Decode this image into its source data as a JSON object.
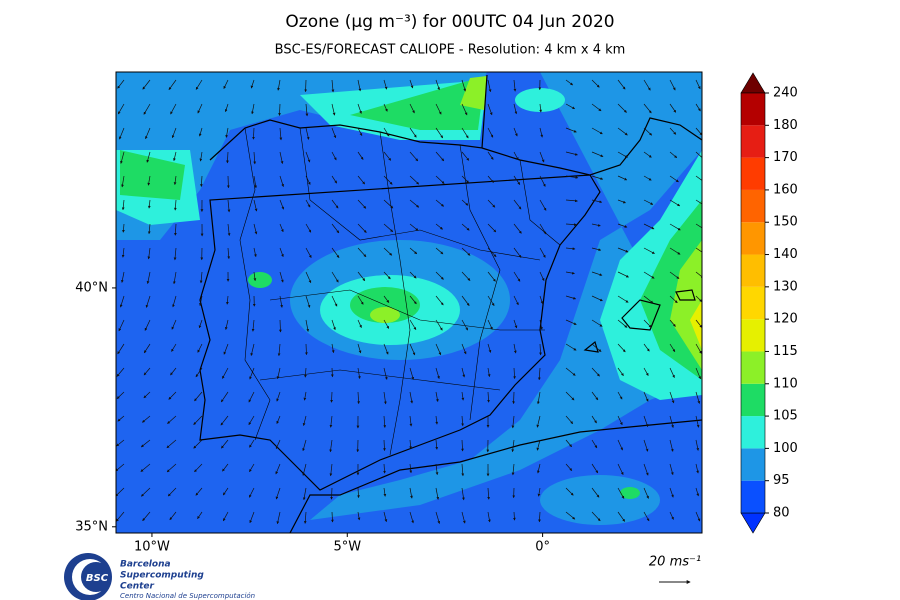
{
  "title": "Ozone (μg m⁻³) for 00UTC 04 Jun 2020",
  "subtitle": "BSC-ES/FORECAST  CALIOPE - Resolution: 4 km x 4 km",
  "map": {
    "xlim": [
      -10.92,
      4.08
    ],
    "ylim": [
      34.87,
      44.52
    ],
    "xticks": [
      {
        "value": -10,
        "label": "10°W"
      },
      {
        "value": -5,
        "label": "5°W"
      },
      {
        "value": 0,
        "label": "0°"
      }
    ],
    "yticks": [
      {
        "value": 40,
        "label": "40°N"
      },
      {
        "value": 35,
        "label": "35°N"
      }
    ]
  },
  "colorbar": {
    "levels": [
      80,
      95,
      100,
      105,
      110,
      115,
      120,
      130,
      140,
      150,
      160,
      170,
      180,
      240
    ],
    "colors": [
      "#0a50ff",
      "#1e96e6",
      "#2ef0dc",
      "#1edc64",
      "#8cf028",
      "#e6f000",
      "#ffd700",
      "#ffbe00",
      "#ff9600",
      "#ff6400",
      "#ff3c00",
      "#e61e14",
      "#b40000"
    ],
    "under_color": "#0032ff",
    "over_color": "#6e0000"
  },
  "wind_scale": {
    "label": "20 ms⁻¹"
  },
  "logo": {
    "short": "BSC",
    "lines": [
      "Barcelona",
      "Supercomputing",
      "Center"
    ],
    "tagline": "Centro Nacional de Supercomputación"
  }
}
